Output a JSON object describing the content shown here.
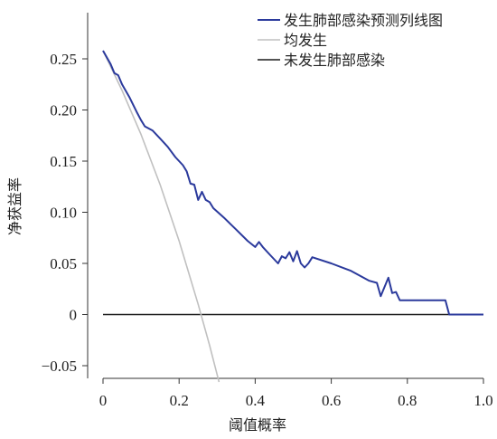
{
  "chart_data": {
    "type": "line",
    "title": "",
    "xlabel": "阈值概率",
    "ylabel": "净获益率",
    "xlim": [
      0,
      1.0
    ],
    "ylim": [
      -0.06,
      0.27
    ],
    "x_ticks": [
      "0",
      "0.2",
      "0.4",
      "0.6",
      "0.8",
      "1.0"
    ],
    "x_tick_values": [
      0,
      0.2,
      0.4,
      0.6,
      0.8,
      1.0
    ],
    "y_ticks": [
      "0.25",
      "0.20",
      "0.15",
      "0.10",
      "0.05",
      "0",
      "−0.05"
    ],
    "y_tick_values": [
      0.25,
      0.2,
      0.15,
      0.1,
      0.05,
      0,
      -0.05
    ],
    "grid": false,
    "legend_position": "top-right",
    "series": [
      {
        "name": "发生肺部感染预测列线图",
        "color": "#2b3a9c",
        "points": [
          [
            0.0,
            0.258
          ],
          [
            0.02,
            0.245
          ],
          [
            0.03,
            0.236
          ],
          [
            0.04,
            0.234
          ],
          [
            0.05,
            0.225
          ],
          [
            0.07,
            0.212
          ],
          [
            0.09,
            0.197
          ],
          [
            0.1,
            0.19
          ],
          [
            0.11,
            0.184
          ],
          [
            0.13,
            0.18
          ],
          [
            0.15,
            0.172
          ],
          [
            0.17,
            0.164
          ],
          [
            0.19,
            0.154
          ],
          [
            0.21,
            0.146
          ],
          [
            0.22,
            0.14
          ],
          [
            0.23,
            0.128
          ],
          [
            0.24,
            0.127
          ],
          [
            0.25,
            0.112
          ],
          [
            0.26,
            0.12
          ],
          [
            0.27,
            0.112
          ],
          [
            0.28,
            0.11
          ],
          [
            0.29,
            0.104
          ],
          [
            0.32,
            0.094
          ],
          [
            0.35,
            0.083
          ],
          [
            0.38,
            0.072
          ],
          [
            0.4,
            0.066
          ],
          [
            0.41,
            0.071
          ],
          [
            0.42,
            0.066
          ],
          [
            0.44,
            0.058
          ],
          [
            0.46,
            0.05
          ],
          [
            0.47,
            0.057
          ],
          [
            0.48,
            0.055
          ],
          [
            0.49,
            0.061
          ],
          [
            0.5,
            0.052
          ],
          [
            0.51,
            0.062
          ],
          [
            0.52,
            0.05
          ],
          [
            0.53,
            0.046
          ],
          [
            0.54,
            0.05
          ],
          [
            0.55,
            0.056
          ],
          [
            0.6,
            0.05
          ],
          [
            0.65,
            0.043
          ],
          [
            0.7,
            0.033
          ],
          [
            0.72,
            0.031
          ],
          [
            0.73,
            0.018
          ],
          [
            0.75,
            0.036
          ],
          [
            0.76,
            0.021
          ],
          [
            0.77,
            0.022
          ],
          [
            0.78,
            0.014
          ],
          [
            0.88,
            0.014
          ],
          [
            0.9,
            0.014
          ],
          [
            0.91,
            0.0
          ],
          [
            1.0,
            0.0
          ]
        ]
      },
      {
        "name": "均发生",
        "color": "#c0c0c0",
        "points": [
          [
            0.0,
            0.258
          ],
          [
            0.05,
            0.219
          ],
          [
            0.1,
            0.176
          ],
          [
            0.15,
            0.127
          ],
          [
            0.2,
            0.072
          ],
          [
            0.25,
            0.01
          ],
          [
            0.28,
            -0.03
          ],
          [
            0.305,
            -0.066
          ]
        ]
      },
      {
        "name": "未发生肺部感染",
        "color": "#1a1a1a",
        "points": [
          [
            0.0,
            0.0
          ],
          [
            1.0,
            0.0
          ]
        ]
      }
    ]
  }
}
